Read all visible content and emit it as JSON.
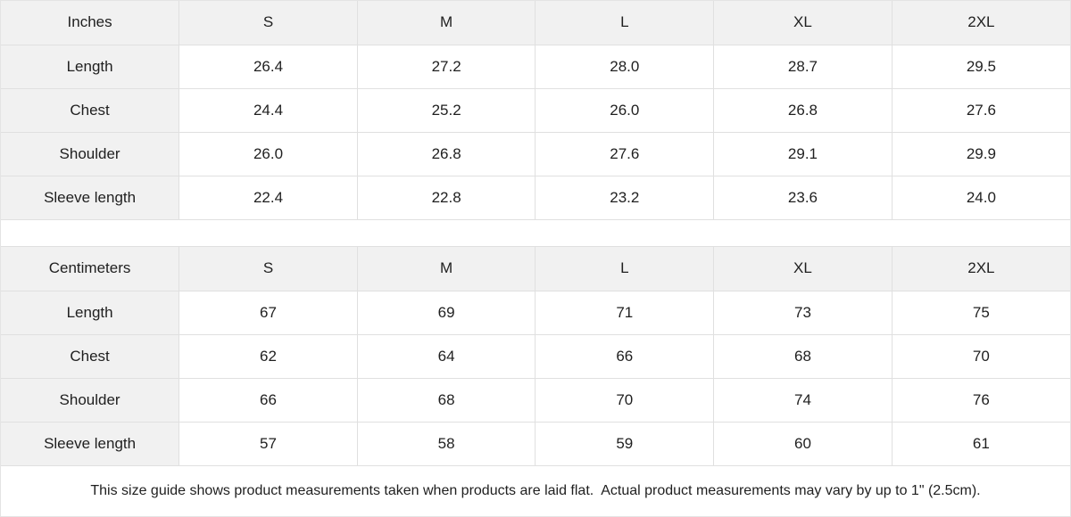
{
  "colors": {
    "header_bg": "#f1f1f1",
    "cell_bg": "#ffffff",
    "border": "#e0e0e0",
    "text": "#1f1f1f"
  },
  "tables": [
    {
      "name": "inches",
      "header": [
        "Inches",
        "S",
        "M",
        "L",
        "XL",
        "2XL"
      ],
      "rows": [
        {
          "label": "Length",
          "values": [
            "26.4",
            "27.2",
            "28.0",
            "28.7",
            "29.5"
          ]
        },
        {
          "label": "Chest",
          "values": [
            "24.4",
            "25.2",
            "26.0",
            "26.8",
            "27.6"
          ]
        },
        {
          "label": "Shoulder",
          "values": [
            "26.0",
            "26.8",
            "27.6",
            "29.1",
            "29.9"
          ]
        },
        {
          "label": "Sleeve length",
          "values": [
            "22.4",
            "22.8",
            "23.2",
            "23.6",
            "24.0"
          ]
        }
      ]
    },
    {
      "name": "centimeters",
      "header": [
        "Centimeters",
        "S",
        "M",
        "L",
        "XL",
        "2XL"
      ],
      "rows": [
        {
          "label": "Length",
          "values": [
            "67",
            "69",
            "71",
            "73",
            "75"
          ]
        },
        {
          "label": "Chest",
          "values": [
            "62",
            "64",
            "66",
            "68",
            "70"
          ]
        },
        {
          "label": "Shoulder",
          "values": [
            "66",
            "68",
            "70",
            "74",
            "76"
          ]
        },
        {
          "label": "Sleeve length",
          "values": [
            "57",
            "58",
            "59",
            "60",
            "61"
          ]
        }
      ]
    }
  ],
  "footer": {
    "note": "This size guide shows product measurements taken when products are laid flat.  Actual product measurements may vary by up to 1\" (2.5cm)."
  }
}
